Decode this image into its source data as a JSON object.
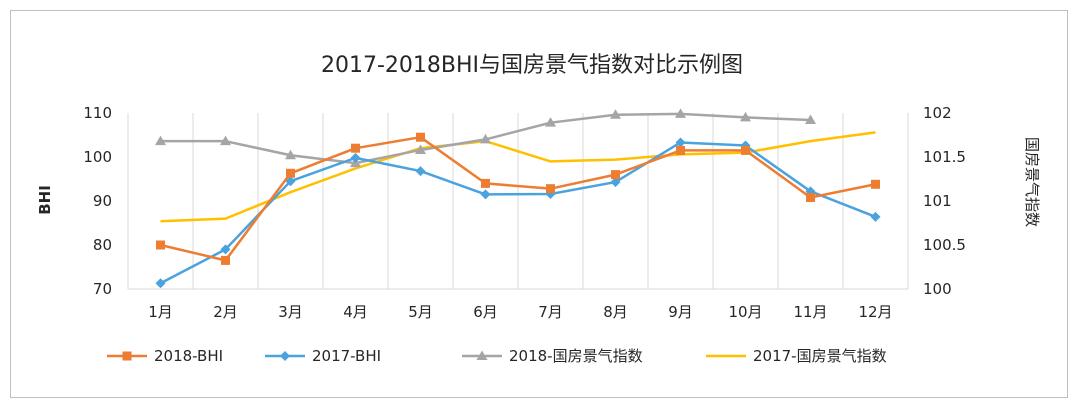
{
  "chart_data": {
    "type": "line",
    "title": "2017-2018BHI与国房景气指数对比示例图",
    "categories": [
      "1月",
      "2月",
      "3月",
      "4月",
      "5月",
      "6月",
      "7月",
      "8月",
      "9月",
      "10月",
      "11月",
      "12月"
    ],
    "ylabel_left": "BHI",
    "ylabel_right": "国房景气指数",
    "ylim_left": [
      70,
      110
    ],
    "yticks_left": [
      "70",
      "80",
      "90",
      "100",
      "110"
    ],
    "ylim_right": [
      100,
      102
    ],
    "yticks_right": [
      "100",
      "100.5",
      "101",
      "101.5",
      "102"
    ],
    "grid": "vertical gridlines at category boundaries",
    "legend_position": "bottom",
    "series": [
      {
        "name": "2018-BHI",
        "axis": "left",
        "marker": "square",
        "color": "#ED7D31",
        "values": [
          80,
          76.5,
          96.3,
          102,
          104.5,
          94,
          92.8,
          96,
          101.5,
          101.5,
          90.8,
          93.8
        ]
      },
      {
        "name": "2017-BHI",
        "axis": "left",
        "marker": "diamond",
        "color": "#4AA3DF",
        "values": [
          71.3,
          79,
          94.5,
          99.8,
          96.8,
          91.5,
          91.6,
          94.3,
          103.3,
          102.6,
          92.2,
          86.4
        ]
      },
      {
        "name": "2018-国房景气指数",
        "axis": "right",
        "marker": "triangle",
        "color": "#A5A5A5",
        "values": [
          101.68,
          101.68,
          101.52,
          101.43,
          101.58,
          101.7,
          101.89,
          101.98,
          101.99,
          101.95,
          101.92,
          null
        ]
      },
      {
        "name": "2017-国房景气指数",
        "axis": "right",
        "marker": "none",
        "color": "#FFC000",
        "values": [
          100.77,
          100.8,
          101.1,
          101.37,
          101.6,
          101.68,
          101.45,
          101.47,
          101.53,
          101.55,
          101.68,
          101.78
        ]
      }
    ]
  }
}
